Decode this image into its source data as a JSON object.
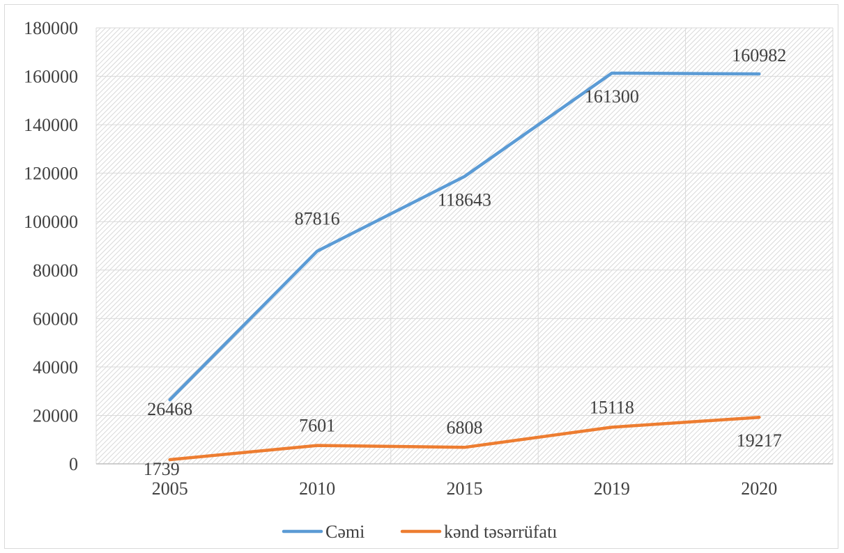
{
  "chart_data": {
    "type": "line",
    "categories": [
      "2005",
      "2010",
      "2015",
      "2019",
      "2020"
    ],
    "series": [
      {
        "name": "Cəmi",
        "values": [
          26468,
          87816,
          118643,
          161300,
          160982
        ],
        "color": "#5B9BD5"
      },
      {
        "name": "kənd təsərrüfatı",
        "values": [
          1739,
          7601,
          6808,
          15118,
          19217
        ],
        "color": "#ED7D31"
      }
    ],
    "ylim": [
      0,
      180000
    ],
    "yticks": [
      "0",
      "20000",
      "40000",
      "60000",
      "80000",
      "100000",
      "120000",
      "140000",
      "160000",
      "180000"
    ],
    "grid": true,
    "legend": "bottom",
    "plot_background": "hatched"
  }
}
